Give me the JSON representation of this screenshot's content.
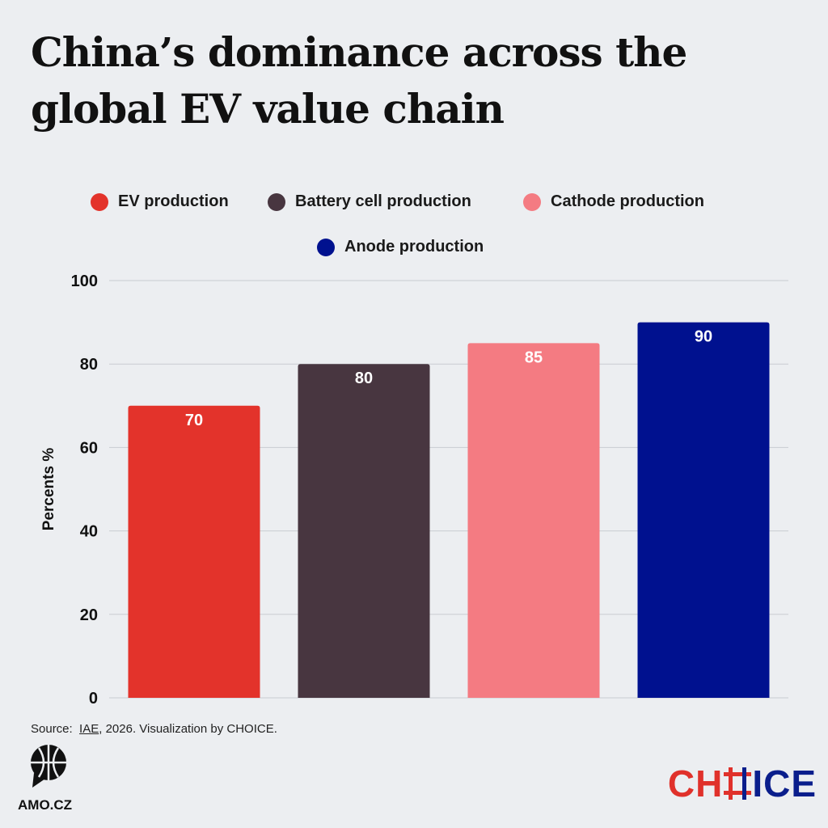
{
  "header": {
    "title_line1": "China’s dominance across the",
    "title_line2": "global EV value chain"
  },
  "colors": {
    "ev": "#e3332b",
    "battery": "#483640",
    "cathode": "#f47b82",
    "anode": "#00118f",
    "grid": "#c9ccd1",
    "background": "#eceef1"
  },
  "chart_data": {
    "type": "bar",
    "title": "China’s dominance across the global EV value chain",
    "xlabel": "",
    "ylabel": "Percents %",
    "ylim": [
      0,
      100
    ],
    "yticks": [
      0,
      20,
      40,
      60,
      80,
      100
    ],
    "grid": true,
    "legend_placement": "top",
    "categories": [
      "EV production",
      "Battery cell production",
      "Cathode production",
      "Anode production"
    ],
    "values": [
      70,
      80,
      85,
      90
    ],
    "data_labels": [
      "70",
      "80",
      "85",
      "90"
    ]
  },
  "footer": {
    "source_prefix": "Source:",
    "source_link": "IAE",
    "source_suffix": ", 2026. Visualization by CHOICE.",
    "amo_label": "AMO.CZ",
    "choice_part_a": "CH",
    "choice_part_b": "ICE"
  }
}
